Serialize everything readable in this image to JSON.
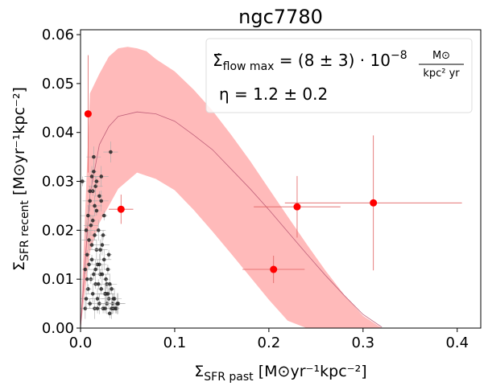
{
  "chart_data": {
    "type": "scatter",
    "title": "ngc7780",
    "xlabel_symbol": "Σ",
    "xlabel_sub": "SFR past",
    "xlabel_units": "[M⊙yr⁻¹kpc⁻²]",
    "ylabel_symbol": "Σ",
    "ylabel_sub": "SFR recent",
    "ylabel_units": "[M⊙yr⁻¹kpc⁻²]",
    "xlim": [
      0.0,
      0.425
    ],
    "ylim": [
      0.0,
      0.061
    ],
    "xticks": [
      "0.0",
      "0.1",
      "0.2",
      "0.3",
      "0.4"
    ],
    "xtick_values": [
      0.0,
      0.1,
      0.2,
      0.3,
      0.4
    ],
    "yticks": [
      "0.00",
      "0.01",
      "0.02",
      "0.03",
      "0.04",
      "0.05",
      "0.06"
    ],
    "ytick_values": [
      0.0,
      0.01,
      0.02,
      0.03,
      0.04,
      0.05,
      0.06
    ],
    "grid": false,
    "annotation": {
      "line1_prefix": "Σ̇",
      "line1_sub": "flow max",
      "line1_mid": "= (8 ± 3) · 10",
      "line1_exp": "−8",
      "line1_frac_num": "M⊙",
      "line1_frac_den": "kpc² yr",
      "line2": "η = 1.2 ± 0.2",
      "placement": "top-right"
    },
    "colors": {
      "band": "#ffbaba",
      "model_line": "#c0607a",
      "binned": "#ff0000",
      "binned_err": "#e06060",
      "pixels": "#1a1a1a",
      "pixel_err": "#aaaaaa"
    },
    "model_curve": {
      "x": [
        0.0,
        0.01,
        0.02,
        0.03,
        0.04,
        0.06,
        0.08,
        0.1,
        0.12,
        0.14,
        0.16,
        0.18,
        0.2,
        0.22,
        0.24,
        0.26,
        0.28,
        0.3,
        0.32
      ],
      "y": [
        0.0,
        0.0273,
        0.0375,
        0.0412,
        0.0433,
        0.0442,
        0.0438,
        0.0423,
        0.0395,
        0.0365,
        0.0325,
        0.0285,
        0.0242,
        0.0197,
        0.0152,
        0.0108,
        0.0067,
        0.0028,
        0.0002
      ]
    },
    "band_upper": {
      "x": [
        0.0,
        0.01,
        0.02,
        0.03,
        0.04,
        0.05,
        0.06,
        0.07,
        0.08,
        0.1,
        0.12,
        0.14,
        0.16,
        0.18,
        0.2,
        0.22,
        0.24,
        0.26,
        0.28,
        0.3,
        0.32
      ],
      "y": [
        0.0,
        0.048,
        0.052,
        0.0555,
        0.0572,
        0.0575,
        0.0572,
        0.0566,
        0.055,
        0.0525,
        0.0488,
        0.0445,
        0.0395,
        0.0342,
        0.0285,
        0.0228,
        0.0172,
        0.0118,
        0.0068,
        0.0025,
        0.0
      ]
    },
    "band_lower": {
      "x": [
        0.32,
        0.3,
        0.28,
        0.26,
        0.24,
        0.22,
        0.2,
        0.18,
        0.16,
        0.14,
        0.12,
        0.1,
        0.08,
        0.06,
        0.04,
        0.02,
        0.01,
        0.0
      ],
      "y": [
        0.0,
        0.0,
        0.0,
        0.0,
        0.0,
        0.0015,
        0.0058,
        0.0105,
        0.0152,
        0.0198,
        0.0242,
        0.0282,
        0.0305,
        0.0318,
        0.0285,
        0.0215,
        0.0155,
        0.0
      ]
    },
    "binned_points": [
      {
        "x": 0.008,
        "y": 0.0438,
        "xerr": 0.003,
        "yerr": 0.012
      },
      {
        "x": 0.043,
        "y": 0.0243,
        "xerr": 0.013,
        "yerr": 0.003
      },
      {
        "x": 0.205,
        "y": 0.012,
        "xerr": 0.033,
        "yerr": 0.0028
      },
      {
        "x": 0.23,
        "y": 0.0248,
        "xerr": 0.046,
        "yerr": 0.0063
      },
      {
        "x": 0.311,
        "y": 0.0256,
        "xerr": 0.094,
        "yerr": 0.0138
      }
    ],
    "pixel_points": {
      "x": [
        0.002,
        0.005,
        0.005,
        0.006,
        0.007,
        0.008,
        0.008,
        0.009,
        0.01,
        0.01,
        0.011,
        0.012,
        0.012,
        0.013,
        0.013,
        0.014,
        0.014,
        0.015,
        0.015,
        0.016,
        0.016,
        0.017,
        0.017,
        0.018,
        0.018,
        0.019,
        0.02,
        0.02,
        0.021,
        0.022,
        0.022,
        0.023,
        0.024,
        0.025,
        0.025,
        0.026,
        0.027,
        0.028,
        0.029,
        0.03,
        0.031,
        0.032,
        0.033,
        0.034,
        0.035,
        0.036,
        0.038,
        0.04,
        0.009,
        0.011,
        0.013,
        0.016,
        0.019,
        0.021,
        0.024,
        0.027,
        0.03,
        0.007,
        0.012,
        0.015,
        0.018,
        0.023,
        0.028,
        0.033,
        0.037,
        0.006,
        0.014,
        0.02,
        0.026,
        0.031,
        0.035,
        0.039,
        0.017,
        0.022,
        0.01,
        0.029
      ],
      "y": [
        0.03,
        0.004,
        0.012,
        0.006,
        0.015,
        0.023,
        0.008,
        0.018,
        0.005,
        0.026,
        0.01,
        0.031,
        0.014,
        0.007,
        0.022,
        0.035,
        0.011,
        0.004,
        0.019,
        0.029,
        0.009,
        0.016,
        0.024,
        0.006,
        0.013,
        0.02,
        0.027,
        0.005,
        0.011,
        0.031,
        0.008,
        0.017,
        0.004,
        0.014,
        0.023,
        0.007,
        0.01,
        0.005,
        0.012,
        0.006,
        0.003,
        0.036,
        0.008,
        0.005,
        0.004,
        0.006,
        0.004,
        0.005,
        0.013,
        0.021,
        0.028,
        0.012,
        0.009,
        0.016,
        0.019,
        0.007,
        0.015,
        0.01,
        0.017,
        0.025,
        0.004,
        0.011,
        0.009,
        0.004,
        0.004,
        0.02,
        0.032,
        0.013,
        0.004,
        0.009,
        0.006,
        0.005,
        0.03,
        0.026,
        0.028,
        0.007
      ]
    }
  }
}
